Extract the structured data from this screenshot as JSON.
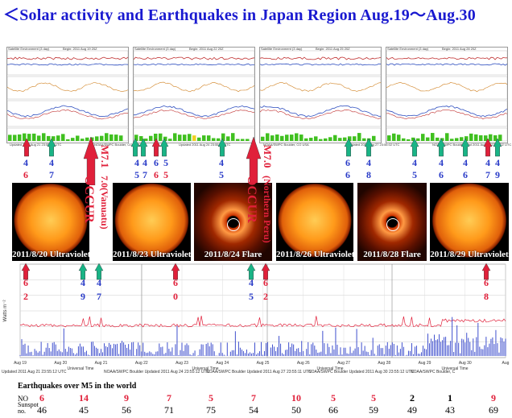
{
  "title": "＜Solar activity and Earthquakes  in Japan Region Aug.19～Aug.30",
  "top_panels": [
    {
      "title": "Satellite Environment (3 day)",
      "begin": "Begin:  2011 Aug 19 20Z"
    },
    {
      "title": "Satellite Environment (3 day)",
      "begin": "Begin:  2011 Aug 22 20Z"
    },
    {
      "title": "Satellite Environment (3 day)",
      "begin": "Begin:  2011 Aug 25 20Z"
    },
    {
      "title": "Satellite Environment (3 day)",
      "begin": "Begin:  2011 Aug 28 20Z"
    }
  ],
  "top_footer": [
    "Updated 2011 Aug 21 23:55:02 UTC",
    "NOAA/SWPC Boulder, CO USA",
    "Updated 2011 Aug 24 23:55:02 UTC",
    "NOAA/SWPC Boulder, CO USA",
    "Updated 2011 Aug 27 23:55:02 UTC",
    "NOAA/SWPC Boulder, Oad 2011 Aug 30 23:55:02 UTC"
  ],
  "upper_numbers": [
    {
      "top": "4",
      "bottom": "6",
      "sub": "3"
    },
    {
      "top": "4",
      "bottom": "7"
    },
    {
      "top": "4",
      "bottom": "5"
    },
    {
      "top": "4",
      "bottom": "7"
    },
    {
      "top": "6",
      "bottom": "6"
    },
    {
      "top": "5",
      "bottom": "5"
    },
    {
      "top": "4",
      "bottom": "5"
    },
    {
      "top": "6",
      "bottom": "6"
    },
    {
      "top": "4",
      "bottom": "8"
    },
    {
      "top": "4",
      "bottom": "5"
    },
    {
      "top": "4",
      "bottom": "6"
    },
    {
      "top": "4",
      "bottom": "6"
    },
    {
      "top": "4",
      "bottom": "7"
    },
    {
      "top": "4",
      "bottom": "9"
    }
  ],
  "occur_events": [
    {
      "magnitude_label": "M7.1",
      "place": "OCCUR",
      "detail": "7.0(Vanuatu)"
    },
    {
      "magnitude_label": "M7.0",
      "place": "OCCUR",
      "detail": "(Northern Peru)"
    }
  ],
  "images": [
    {
      "label": "2011/8/20 Ultraviolet",
      "kind": "sun"
    },
    {
      "label": "2011/8/23 Ultraviolet",
      "kind": "sun"
    },
    {
      "label": "2011/8/24 Flare",
      "kind": "cme"
    },
    {
      "label": "2011/8/26 Ultraviolet",
      "kind": "sun"
    },
    {
      "label": "2011/8/28 Flare",
      "kind": "cme"
    },
    {
      "label": "2011/8/29 Ultraviolet",
      "kind": "sun"
    }
  ],
  "lower_numbers": [
    {
      "top": "6",
      "bottom": "2",
      "color": "red"
    },
    {
      "top": "4",
      "bottom": "9",
      "color": "blue"
    },
    {
      "top": "4",
      "bottom": "7",
      "color": "blue"
    },
    {
      "top": "6",
      "bottom": "0",
      "color": "red"
    },
    {
      "top": "4",
      "bottom": "5",
      "color": "blue"
    },
    {
      "top": "6",
      "bottom": "2",
      "color": "red"
    },
    {
      "top": "6",
      "bottom": "8",
      "color": "red"
    }
  ],
  "lower_chart": {
    "ylabel": "Watts m⁻²",
    "xlabels": [
      "Aug 19",
      "Aug 20",
      "Aug 21",
      "Aug 22",
      "Aug 23",
      "Aug 24",
      "Aug 25",
      "Aug 26",
      "Aug 27",
      "Aug 28",
      "Aug 29",
      "Aug 30",
      "Aug"
    ],
    "axis_caption": "Universal Time",
    "footer": [
      "Updated 2011 Aug 21 23:55:12 UTC",
      "NOAA/SWPC Boulder Updated 2011 Aug 24 23:55:12 UTC",
      "NOAA/SWPC Boulder Updated 2011 Aug 27 23:55:11 UTC",
      "NOAA/SWPC Boulder Updated 2011 Aug 30 23:55:12 UTC",
      "NOAA/SWPC Boulder, C"
    ]
  },
  "table": {
    "caption": "Earthquakes  over  M5 in the world",
    "row1_label": "NO",
    "row2_label": "Sunspot no.",
    "earthquakes": [
      "6",
      "14",
      "9",
      "7",
      "5",
      "7",
      "10",
      "5",
      "5",
      "2",
      "1",
      "9"
    ],
    "earthquake_colors": [
      "#e0203a",
      "#e0203a",
      "#e0203a",
      "#e0203a",
      "#e0203a",
      "#e0203a",
      "#e0203a",
      "#e0203a",
      "#e0203a",
      "#000000",
      "#000000",
      "#e0203a"
    ],
    "sunspots": [
      "46",
      "45",
      "56",
      "71",
      "75",
      "54",
      "50",
      "66",
      "59",
      "49",
      "43",
      "69"
    ]
  },
  "colors": {
    "title": "#1a1ad0",
    "red_arrow": "#e0203a",
    "green_arrow": "#19b486",
    "blue_series": "#2a3cc8",
    "red_series": "#e0203a"
  }
}
